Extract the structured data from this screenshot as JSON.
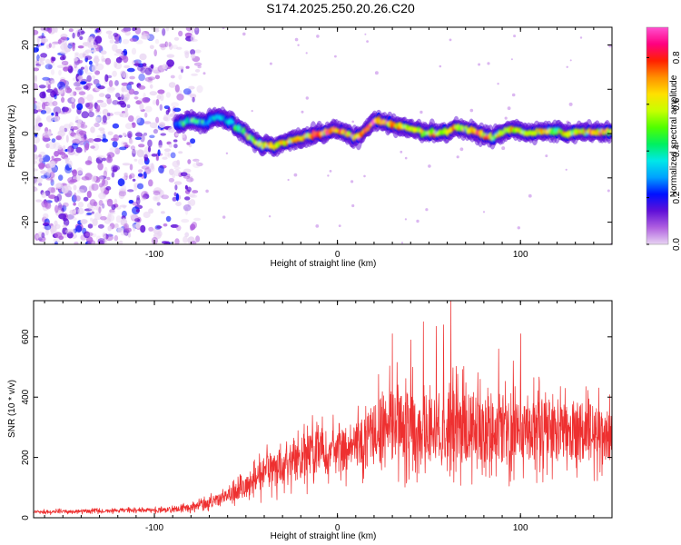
{
  "title": "S174.2025.250.20.26.C20",
  "chart_data": [
    {
      "type": "heatmap",
      "xlabel": "Height of straight line (km)",
      "ylabel": "Frequency (Hz)",
      "xlim": [
        -166,
        150
      ],
      "ylim": [
        -25,
        24
      ],
      "xticks": [
        -100,
        0,
        100
      ],
      "xtick_labels": [
        "-100",
        "0",
        "100"
      ],
      "yticks": [
        -20,
        -10,
        0,
        10,
        20
      ],
      "ytick_labels": [
        "-20",
        "-10",
        "0",
        "10",
        "20"
      ],
      "grid": false,
      "ridge": {
        "x": [
          -88,
          -80,
          -72,
          -66,
          -60,
          -55,
          -50,
          -45,
          -40,
          -35,
          -30,
          -25,
          -20,
          -15,
          -10,
          -5,
          0,
          5,
          10,
          15,
          20,
          25,
          30,
          35,
          40,
          45,
          50,
          55,
          60,
          65,
          70,
          75,
          80,
          85,
          90,
          95,
          100,
          105,
          110,
          115,
          120,
          125,
          130,
          135,
          140,
          145,
          150
        ],
        "freq": [
          2,
          3,
          2.5,
          4,
          3,
          1.5,
          0,
          -2,
          -2.5,
          -3,
          -2,
          -1.5,
          -1,
          -0.5,
          0,
          0.5,
          1,
          0,
          -1,
          0.5,
          3,
          2.5,
          2,
          1.5,
          1,
          0.5,
          0.2,
          0,
          0.5,
          1.5,
          1,
          0.5,
          -0.5,
          -1,
          0.5,
          1,
          0.5,
          0,
          0.3,
          0.5,
          0.5,
          0,
          0.3,
          0.5,
          0.5,
          0.5,
          0.5
        ],
        "amplitude": [
          0.3,
          0.35,
          0.3,
          0.3,
          0.3,
          0.35,
          0.4,
          0.5,
          0.55,
          0.6,
          0.55,
          0.6,
          0.65,
          0.7,
          0.75,
          0.7,
          0.75,
          0.65,
          0.6,
          0.7,
          0.75,
          0.7,
          0.65,
          0.6,
          0.55,
          0.55,
          0.6,
          0.55,
          0.6,
          0.55,
          0.5,
          0.55,
          0.6,
          0.55,
          0.5,
          0.55,
          0.5,
          0.55,
          0.6,
          0.55,
          0.5,
          0.55,
          0.6,
          0.55,
          0.55,
          0.6,
          0.55
        ]
      },
      "noise_region": {
        "xmin": -166,
        "xmax": -75,
        "freq_range": [
          -25,
          24
        ]
      },
      "colorbar": {
        "label": "Normalized spectral amplitude",
        "range": [
          0,
          0.93
        ],
        "ticks": [
          0.0,
          0.2,
          0.4,
          0.6,
          0.8
        ],
        "tick_labels": [
          "0.0",
          "0.2",
          "0.4",
          "0.6",
          "0.8"
        ],
        "colors": [
          "#e8d4f2",
          "#b060e0",
          "#6010d8",
          "#0010ff",
          "#00a0ff",
          "#00e8e8",
          "#00f060",
          "#50ff00",
          "#c8ff00",
          "#ffe000",
          "#ff9000",
          "#ff2000",
          "#ff0080",
          "#ff50d0"
        ]
      }
    },
    {
      "type": "line",
      "xlabel": "Height of straight line (km)",
      "ylabel": "SNR (10 * v/v)",
      "xlim": [
        -166,
        150
      ],
      "ylim": [
        0,
        720
      ],
      "xticks": [
        -100,
        0,
        100
      ],
      "xtick_labels": [
        "-100",
        "0",
        "100"
      ],
      "yticks": [
        0,
        200,
        400,
        600
      ],
      "ytick_labels": [
        "0",
        "200",
        "400",
        "600"
      ],
      "grid": false,
      "series": [
        {
          "name": "SNR",
          "color": "#ee3030",
          "x": [
            -166,
            -150,
            -130,
            -110,
            -100,
            -90,
            -80,
            -70,
            -60,
            -50,
            -45,
            -40,
            -35,
            -30,
            -25,
            -20,
            -15,
            -10,
            -5,
            0,
            5,
            10,
            15,
            20,
            25,
            30,
            35,
            40,
            45,
            50,
            55,
            60,
            65,
            70,
            75,
            80,
            85,
            90,
            95,
            100,
            105,
            110,
            115,
            120,
            125,
            130,
            135,
            140,
            145,
            150
          ],
          "mean": [
            20,
            20,
            22,
            25,
            25,
            28,
            35,
            50,
            70,
            100,
            130,
            150,
            160,
            170,
            185,
            200,
            210,
            215,
            215,
            220,
            230,
            240,
            250,
            280,
            300,
            310,
            310,
            300,
            300,
            295,
            300,
            310,
            305,
            300,
            295,
            290,
            285,
            280,
            280,
            285,
            290,
            290,
            285,
            280,
            280,
            285,
            285,
            280,
            280,
            280
          ],
          "spread": [
            10,
            10,
            10,
            12,
            12,
            15,
            20,
            30,
            40,
            60,
            80,
            100,
            110,
            110,
            120,
            130,
            130,
            130,
            130,
            130,
            130,
            140,
            150,
            180,
            200,
            210,
            210,
            200,
            200,
            200,
            200,
            210,
            210,
            200,
            200,
            200,
            190,
            180,
            180,
            180,
            180,
            180,
            180,
            170,
            170,
            170,
            170,
            170,
            170,
            160
          ]
        }
      ],
      "peaks": {
        "x": [
          30,
          40,
          47,
          54,
          58,
          62,
          88,
          96,
          100
        ],
        "y": [
          610,
          590,
          650,
          635,
          640,
          720,
          560,
          520,
          610
        ]
      }
    }
  ]
}
